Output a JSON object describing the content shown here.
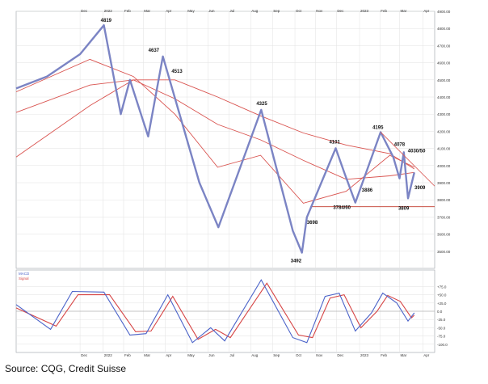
{
  "source_text": "Source: CQG, Credit Suisse",
  "colors": {
    "candles": "#7b84c4",
    "moving_averages": "#d9534f",
    "support_line": "#c0392b",
    "macd_line": "#4b63c9",
    "signal_line": "#d64545",
    "grid": "#e2e2e2",
    "axis_text": "#333333"
  },
  "chart_data": [
    {
      "type": "line",
      "panel": "price",
      "ylim": [
        3400,
        4900
      ],
      "x_range": [
        "2021-09",
        "2023-03"
      ],
      "y_tick_labels": [
        "3500.00",
        "3600.00",
        "3700.00",
        "3800.00",
        "3900.00",
        "4000.00",
        "4100.00",
        "4200.00",
        "4300.00",
        "4400.00",
        "4500.00",
        "4600.00",
        "4700.00",
        "4800.00",
        "4900.00"
      ],
      "x_tick_labels": [
        "Dec",
        "2022",
        "Feb",
        "Mar",
        "Apr",
        "May",
        "Jun",
        "Jul",
        "Aug",
        "Sep",
        "Oct",
        "Nov",
        "Dec",
        "2023",
        "Feb",
        "Mar",
        "Apr"
      ],
      "series": [
        {
          "x": [
            "2021-09-01",
            "2021-10-15",
            "2021-12-01",
            "2022-01-04",
            "2022-01-28",
            "2022-02-10",
            "2022-03-08",
            "2022-03-29",
            "2022-05-20",
            "2022-06-16",
            "2022-08-16",
            "2022-09-30",
            "2022-10-13",
            "2022-10-20",
            "2022-11-30",
            "2022-12-13",
            "2022-12-28",
            "2023-02-02",
            "2023-02-20",
            "2023-03-01",
            "2023-03-07",
            "2023-03-13",
            "2023-03-22"
          ],
          "values": [
            4450,
            4520,
            4650,
            4819,
            4300,
            4500,
            4170,
            4637,
            3900,
            3640,
            4325,
            3620,
            3492,
            3698,
            4101,
            3950,
            3784,
            4195,
            4050,
            3925,
            4078,
            3809,
            3960
          ]
        },
        {
          "x": [
            "2021-09-01",
            "2021-12-15",
            "2022-02-15",
            "2022-04-15",
            "2022-06-15",
            "2022-08-15",
            "2022-10-15",
            "2022-12-15",
            "2023-02-15",
            "2023-03-22"
          ],
          "values": [
            4430,
            4620,
            4520,
            4300,
            3990,
            4060,
            3780,
            3850,
            4060,
            3990
          ]
        },
        {
          "x": [
            "2021-09-01",
            "2021-12-15",
            "2022-02-15",
            "2022-04-15",
            "2022-06-15",
            "2022-08-15",
            "2022-10-15",
            "2022-12-15",
            "2023-02-15",
            "2023-03-22"
          ],
          "values": [
            4310,
            4470,
            4500,
            4390,
            4240,
            4150,
            4030,
            3920,
            3940,
            3960
          ]
        },
        {
          "x": [
            "2021-09-01",
            "2021-12-15",
            "2022-02-15",
            "2022-04-15",
            "2022-06-15",
            "2022-08-15",
            "2022-10-15",
            "2022-12-15",
            "2023-02-15",
            "2023-03-22"
          ],
          "values": [
            4050,
            4350,
            4500,
            4500,
            4400,
            4290,
            4190,
            4120,
            4070,
            3980
          ]
        }
      ],
      "annotations": [
        "4819",
        "4637",
        "4513",
        "4325",
        "4101",
        "4195",
        "4078",
        "4030/50",
        "3909",
        "3886",
        "3809",
        "3784/60",
        "3698",
        "3492"
      ]
    },
    {
      "type": "line",
      "panel": "macd",
      "ylim": [
        -125,
        125
      ],
      "y_tick_labels": [
        "+75.0",
        "+50.0",
        "+25.0",
        "0.0",
        "-25.0",
        "-50.0",
        "-75.0",
        "-100.0"
      ],
      "series": [
        {
          "x": [
            "2021-09-01",
            "2021-10-20",
            "2021-11-20",
            "2022-01-04",
            "2022-02-10",
            "2022-03-05",
            "2022-04-05",
            "2022-05-10",
            "2022-06-05",
            "2022-06-25",
            "2022-08-16",
            "2022-09-30",
            "2022-10-20",
            "2022-11-15",
            "2022-12-05",
            "2022-12-28",
            "2023-01-20",
            "2023-02-05",
            "2023-02-25",
            "2023-03-13",
            "2023-03-22"
          ],
          "values": [
            20,
            -55,
            60,
            58,
            -72,
            -68,
            50,
            -95,
            -50,
            -90,
            95,
            -80,
            -95,
            45,
            55,
            -60,
            -5,
            55,
            25,
            -30,
            -5
          ]
        },
        {
          "x": [
            "2021-09-01",
            "2021-10-28",
            "2021-11-28",
            "2022-01-12",
            "2022-02-18",
            "2022-03-12",
            "2022-04-12",
            "2022-05-18",
            "2022-06-12",
            "2022-07-03",
            "2022-08-24",
            "2022-10-08",
            "2022-10-28",
            "2022-11-22",
            "2022-12-12",
            "2023-01-05",
            "2023-01-28",
            "2023-02-12",
            "2023-03-02",
            "2023-03-18",
            "2023-03-22"
          ],
          "values": [
            10,
            -45,
            50,
            50,
            -62,
            -60,
            45,
            -85,
            -55,
            -80,
            85,
            -72,
            -80,
            40,
            50,
            -50,
            0,
            48,
            30,
            -20,
            -12
          ]
        }
      ],
      "legend": [
        "MACD",
        "Signal"
      ]
    }
  ]
}
